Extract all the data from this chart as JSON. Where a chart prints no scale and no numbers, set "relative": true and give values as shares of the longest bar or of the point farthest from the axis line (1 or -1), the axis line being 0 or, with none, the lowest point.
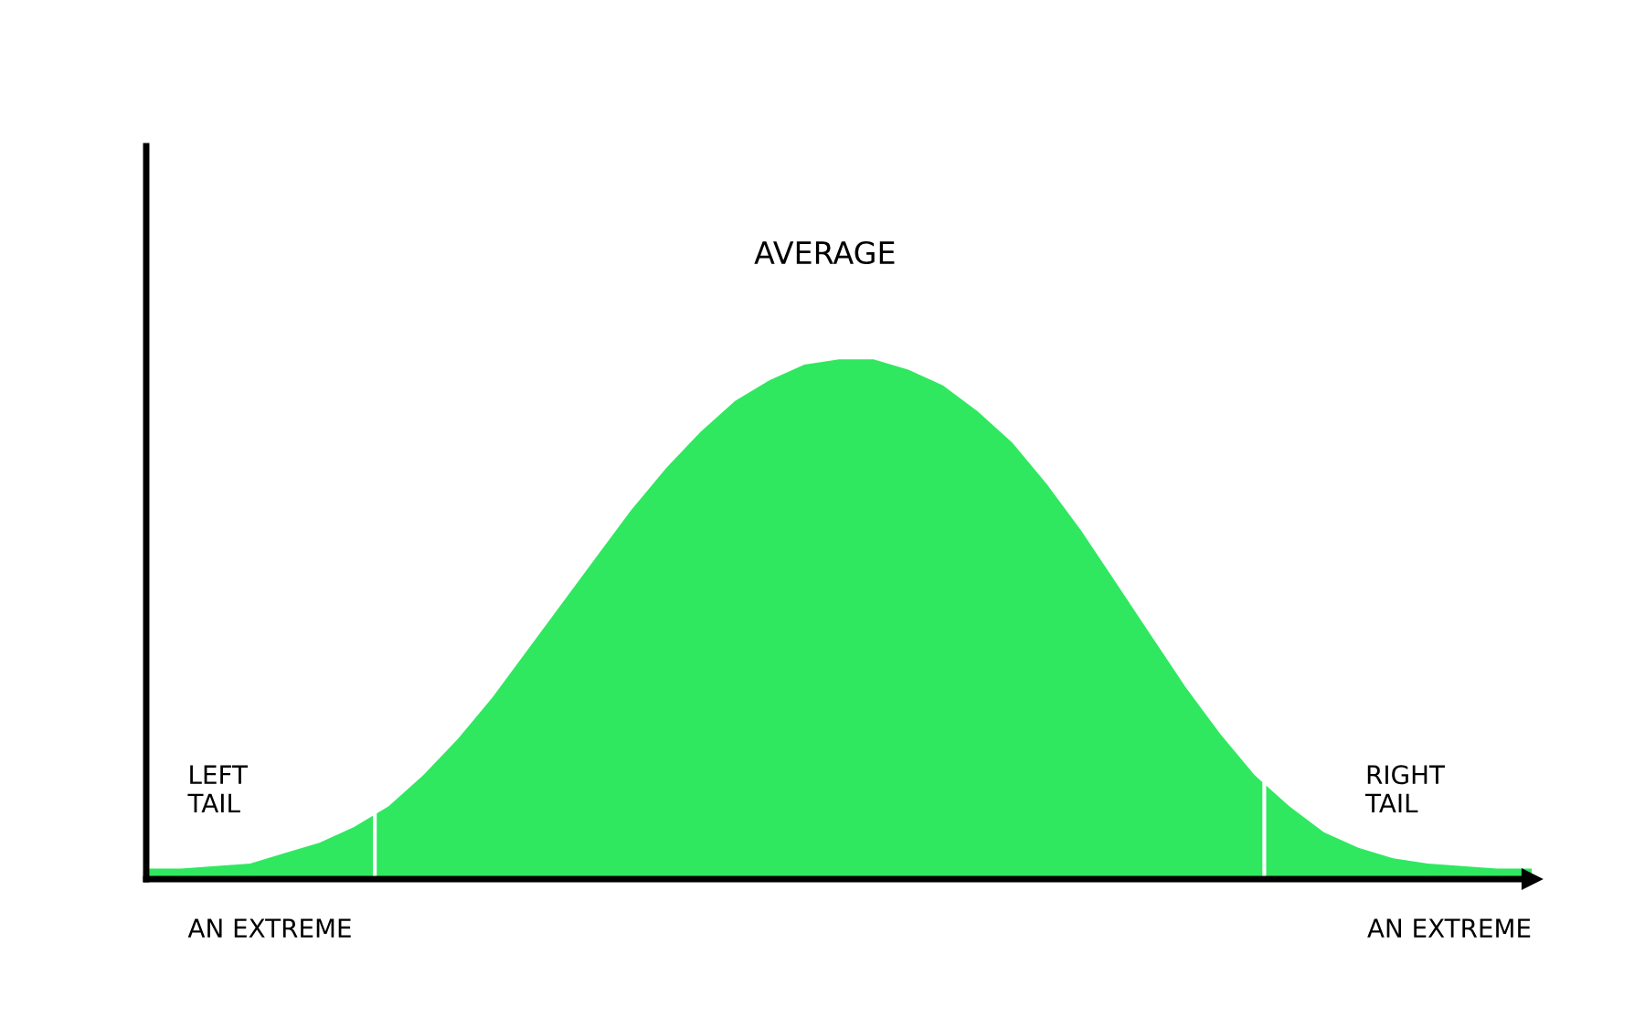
{
  "chart_data": {
    "type": "area",
    "relative": true,
    "color": "#2fe860",
    "categories": [
      null,
      null,
      null,
      null,
      null,
      null,
      null,
      null,
      null,
      null,
      null,
      null,
      null,
      null,
      null,
      null,
      null,
      null,
      null,
      null,
      null,
      null,
      null,
      null,
      null,
      null,
      null,
      null,
      null,
      null,
      null,
      null,
      null,
      null,
      null,
      null,
      null,
      null,
      null,
      null,
      null
    ],
    "values": [
      0.02,
      0.02,
      0.025,
      0.03,
      0.05,
      0.07,
      0.1,
      0.14,
      0.2,
      0.27,
      0.35,
      0.44,
      0.53,
      0.62,
      0.71,
      0.79,
      0.86,
      0.92,
      0.96,
      0.99,
      1.0,
      1.0,
      0.98,
      0.95,
      0.9,
      0.84,
      0.76,
      0.67,
      0.57,
      0.47,
      0.37,
      0.28,
      0.2,
      0.14,
      0.09,
      0.06,
      0.04,
      0.03,
      0.025,
      0.02,
      0.02
    ],
    "annotations": [
      "AVERAGE",
      "LEFT\nTAIL",
      "RIGHT\nTAIL",
      "AN EXTREME",
      "AN EXTREME"
    ]
  }
}
